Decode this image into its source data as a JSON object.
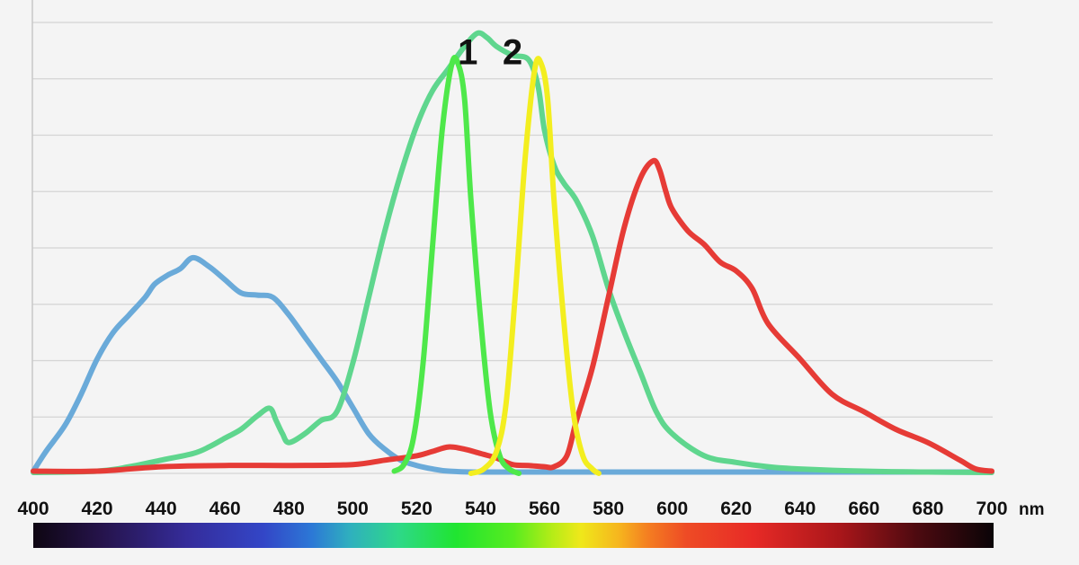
{
  "chart_data": {
    "type": "line",
    "title": "",
    "xlabel": "",
    "ylabel": "",
    "x_unit": "nm",
    "xlim": [
      400,
      700
    ],
    "ylim": [
      0,
      100
    ],
    "x_ticks": [
      400,
      420,
      440,
      460,
      480,
      500,
      520,
      540,
      560,
      580,
      600,
      620,
      640,
      660,
      680,
      700
    ],
    "grid": "horizontal",
    "legend": "none",
    "spectrum_bar": true,
    "annotations": [
      {
        "text": "1",
        "x": 536,
        "y": 93
      },
      {
        "text": "2",
        "x": 550,
        "y": 93
      }
    ],
    "series": [
      {
        "color": "#6aaad9",
        "x": [
          400,
          404,
          410,
          415,
          420,
          425,
          430,
          435,
          438,
          442,
          446,
          450,
          455,
          460,
          465,
          470,
          475,
          480,
          485,
          490,
          495,
          500,
          505,
          510,
          515,
          520,
          525,
          530,
          540,
          560,
          600,
          650,
          700
        ],
        "y": [
          0.5,
          5,
          11,
          18,
          26,
          32,
          36,
          40,
          43,
          45,
          46.5,
          49,
          47,
          44,
          41,
          40.5,
          40,
          36,
          31,
          26,
          21,
          15,
          9,
          5.5,
          3,
          1.8,
          1,
          0.5,
          0.3,
          0.3,
          0.3,
          0.3,
          0.3
        ]
      },
      {
        "color": "#5fd68e",
        "x": [
          400,
          420,
          430,
          440,
          450,
          455,
          460,
          465,
          470,
          474,
          476,
          478,
          480,
          485,
          490,
          495,
          500,
          505,
          510,
          515,
          520,
          525,
          530,
          535,
          539,
          542,
          545,
          550,
          555,
          558,
          560,
          563,
          566,
          570,
          575,
          580,
          585,
          590,
          595,
          600,
          610,
          620,
          630,
          640,
          660,
          680,
          700
        ],
        "y": [
          0.2,
          0.5,
          1.5,
          3,
          4.5,
          6,
          8,
          10,
          13,
          14.8,
          12,
          9,
          7,
          9,
          12,
          14,
          25,
          40,
          55,
          68,
          79,
          87,
          92,
          97,
          100,
          99,
          97,
          95,
          94,
          88,
          78,
          70,
          66,
          62,
          54,
          42,
          32,
          23,
          14,
          9,
          4,
          2.5,
          1.5,
          1,
          0.5,
          0.3,
          0.2
        ]
      },
      {
        "color": "#e63b36",
        "x": [
          400,
          420,
          440,
          460,
          480,
          500,
          510,
          520,
          525,
          530,
          535,
          540,
          545,
          550,
          555,
          560,
          563,
          567,
          570,
          575,
          580,
          585,
          590,
          594,
          596,
          598,
          600,
          605,
          610,
          615,
          620,
          625,
          630,
          640,
          650,
          660,
          670,
          680,
          690,
          695,
          700
        ],
        "y": [
          0.5,
          0.5,
          1.5,
          1.8,
          1.8,
          2,
          3,
          4,
          5,
          6,
          5.5,
          4.5,
          3.5,
          2,
          1.8,
          1.5,
          1.5,
          4,
          12,
          24,
          40,
          56,
          67,
          71,
          69,
          64,
          60,
          55,
          52,
          48,
          46,
          42,
          34,
          26,
          18,
          14,
          10,
          7,
          3,
          1,
          0.5
        ]
      },
      {
        "color": "#4ee84a",
        "x": [
          513,
          516,
          519,
          522,
          525,
          528,
          531,
          533,
          535,
          537,
          540,
          543,
          546,
          549,
          552
        ],
        "y": [
          0.5,
          2,
          8,
          25,
          52,
          78,
          93,
          93,
          85,
          62,
          35,
          14,
          4,
          1,
          0
        ]
      },
      {
        "color": "#f3ee1f",
        "x": [
          537,
          541,
          545,
          548,
          551,
          554,
          557,
          559,
          561,
          563,
          566,
          569,
          572,
          575,
          577
        ],
        "y": [
          0,
          1,
          5,
          16,
          42,
          72,
          92,
          93,
          85,
          62,
          35,
          14,
          4,
          1,
          0
        ]
      }
    ]
  }
}
